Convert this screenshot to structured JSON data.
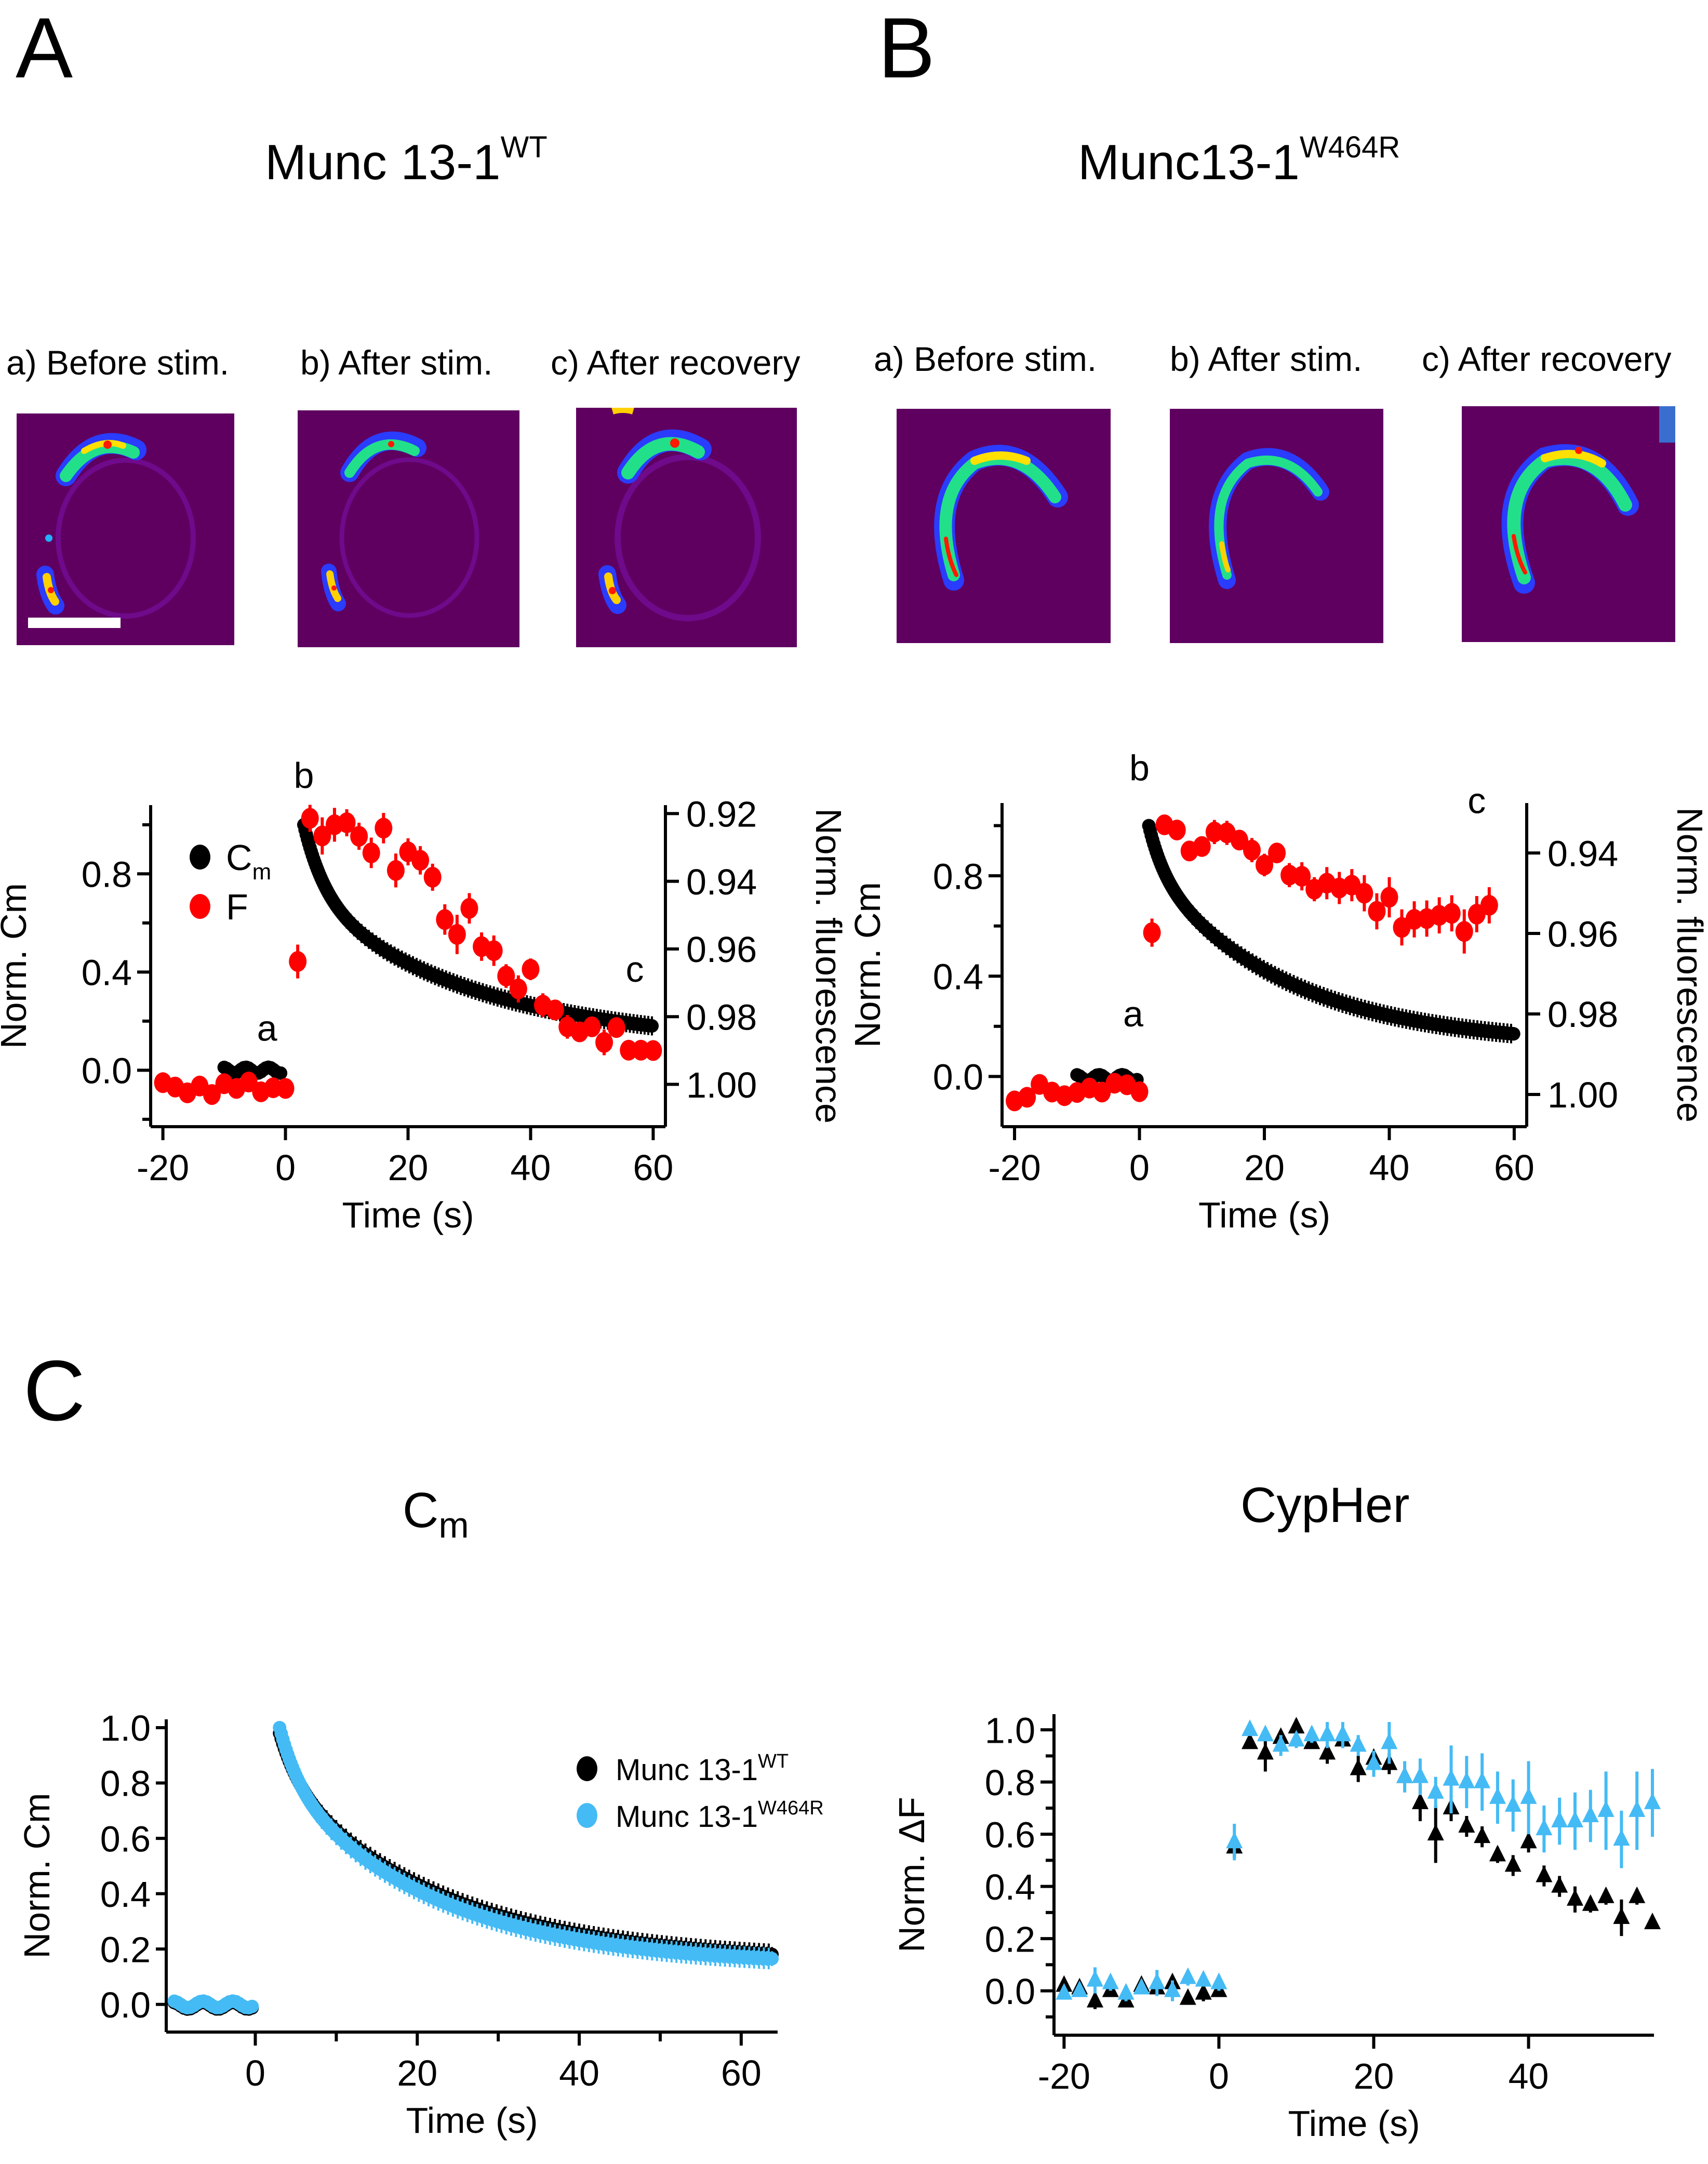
{
  "panels": {
    "A": {
      "letter": "A",
      "title_main": "Munc 13-1",
      "title_sup": "WT",
      "images": [
        {
          "label": "a) Before stim."
        },
        {
          "label": "b) After stim."
        },
        {
          "label": "c) After recovery"
        }
      ],
      "scale_bar": true
    },
    "B": {
      "letter": "B",
      "title_main": "Munc13-1",
      "title_sup": "W464R",
      "images": [
        {
          "label": "a) Before stim."
        },
        {
          "label": "b) After stim."
        },
        {
          "label": "c) After recovery"
        }
      ]
    },
    "C": {
      "letter": "C",
      "title_left_main": "C",
      "title_left_sub": "m",
      "title_right": "CypHer"
    }
  },
  "colors": {
    "cm": "#000000",
    "fluor": "#ff0000",
    "wt": "#000000",
    "mutant": "#44bbf5",
    "image_bg": "#5f0060"
  },
  "chart_data": [
    {
      "id": "A-plot",
      "type": "scatter",
      "xlabel": "Time (s)",
      "ylabel": "Norm. Cm",
      "y2label": "Norm. fluorescence",
      "xlim": [
        -22,
        62
      ],
      "ylim": [
        -0.23,
        1.08
      ],
      "y2lim_inverted": [
        1.0125,
        0.9175
      ],
      "xticks": [
        -20,
        0,
        20,
        40,
        60
      ],
      "yticks": [
        0.0,
        0.4,
        0.8
      ],
      "yticks_minor": [
        -0.2,
        0.2,
        0.6,
        1.0
      ],
      "y2ticks": [
        0.92,
        0.94,
        0.96,
        0.98,
        1.0
      ],
      "ytick_labels": [
        "0.0",
        "0.4",
        "0.8"
      ],
      "y2tick_labels": [
        "0.92",
        "0.94",
        "0.96",
        "0.98",
        "1.00"
      ],
      "annotations": [
        {
          "text": "a",
          "x": -3,
          "y": 0.12
        },
        {
          "text": "b",
          "x": 3,
          "y": 1.15
        },
        {
          "text": "c",
          "x": 57,
          "y": 0.36
        }
      ],
      "legend": {
        "placement": "top-left",
        "entries": [
          {
            "label": "C",
            "sub": "m",
            "series": "Cm"
          },
          {
            "label": "F",
            "sub": "",
            "series": "F"
          }
        ]
      },
      "series": [
        {
          "name": "Cm",
          "axis": "left",
          "kind": "dense-decay",
          "baseline": {
            "x": [
              -10,
              -0.5
            ],
            "y": 0.0
          },
          "decay": {
            "x_start": 3,
            "x_end": 60,
            "y_start": 1.0,
            "y_end": 0.18,
            "tau_fast": 3.5,
            "tau_slow": 28,
            "fast_frac": 0.32
          }
        },
        {
          "name": "F",
          "axis": "right",
          "x": [
            -20,
            -18,
            -16,
            -14,
            -12,
            -10,
            -8,
            -6,
            -4,
            -2,
            0,
            2,
            4,
            6,
            8,
            10,
            12,
            14,
            16,
            18,
            20,
            22,
            24,
            26,
            28,
            30,
            32,
            34,
            36,
            38,
            40,
            42,
            44,
            46,
            48,
            50,
            52,
            54,
            56,
            58,
            60
          ],
          "y": [
            0.9995,
            1.0008,
            1.0025,
            1.0005,
            1.003,
            0.9998,
            1.0012,
            0.9993,
            1.0022,
            1.001,
            1.0012,
            0.9637,
            0.9214,
            0.9266,
            0.9233,
            0.9227,
            0.9267,
            0.9316,
            0.9243,
            0.9368,
            0.9313,
            0.9338,
            0.9388,
            0.9513,
            0.9557,
            0.948,
            0.9593,
            0.9605,
            0.968,
            0.9718,
            0.966,
            0.9766,
            0.978,
            0.983,
            0.9845,
            0.983,
            0.9876,
            0.9832,
            0.9899,
            0.9899,
            0.99
          ],
          "err": [
            0.0011,
            0.0012,
            0.0022,
            0.0018,
            0.0017,
            0.0012,
            0.0017,
            0.0015,
            0.0021,
            0.0016,
            0.0019,
            0.005,
            0.004,
            0.0055,
            0.005,
            0.004,
            0.004,
            0.0045,
            0.0045,
            0.005,
            0.004,
            0.0042,
            0.004,
            0.0045,
            0.0058,
            0.0045,
            0.0042,
            0.0045,
            0.0035,
            0.004,
            0.0032,
            0.0035,
            0.003,
            0.0035,
            0.003,
            0.0028,
            0.0038,
            0.0028,
            0.002,
            0.0018,
            0.0018
          ]
        }
      ]
    },
    {
      "id": "B-plot",
      "type": "scatter",
      "xlabel": "Time (s)",
      "ylabel": "Norm. Cm",
      "y2label": "Norm. fluorescence",
      "xlim": [
        -22,
        62
      ],
      "ylim": [
        -0.2,
        1.09
      ],
      "y2lim_inverted": [
        1.008,
        0.9276
      ],
      "xticks": [
        -20,
        0,
        20,
        40,
        60
      ],
      "yticks": [
        0.0,
        0.4,
        0.8
      ],
      "yticks_minor": [
        0.2,
        0.6,
        1.0
      ],
      "y2ticks": [
        0.94,
        0.96,
        0.98,
        1.0
      ],
      "ytick_labels": [
        "0.0",
        "0.4",
        "0.8"
      ],
      "y2tick_labels": [
        "0.94",
        "0.96",
        "0.98",
        "1.00"
      ],
      "annotations": [
        {
          "text": "a",
          "x": -1,
          "y": 0.2
        },
        {
          "text": "b",
          "x": 0,
          "y": 1.18
        },
        {
          "text": "c",
          "x": 54,
          "y": 1.05
        }
      ],
      "series": [
        {
          "name": "Cm",
          "axis": "left",
          "kind": "dense-decay",
          "baseline": {
            "x": [
              -10,
              0
            ],
            "y": -0.005
          },
          "decay": {
            "x_start": 1.5,
            "x_end": 60,
            "y_start": 1.0,
            "y_end": 0.17,
            "tau_fast": 2.5,
            "tau_slow": 22,
            "fast_frac": 0.2
          }
        },
        {
          "name": "F",
          "axis": "right",
          "x": [
            -20,
            -18,
            -16,
            -14,
            -12,
            -10,
            -8,
            -6,
            -4,
            -2,
            0,
            2,
            4,
            6,
            8,
            10,
            12,
            14,
            16,
            18,
            20,
            22,
            24,
            26,
            28,
            30,
            32,
            34,
            36,
            38,
            40,
            42,
            44,
            46,
            48,
            50,
            52,
            54,
            56
          ],
          "y": [
            1.0016,
            1.0007,
            0.9975,
            0.9994,
            1.0003,
            0.9995,
            0.9984,
            0.9994,
            0.9972,
            0.9976,
            0.9993,
            0.9598,
            0.933,
            0.9343,
            0.9395,
            0.9384,
            0.9348,
            0.935,
            0.9368,
            0.9393,
            0.943,
            0.94,
            0.9455,
            0.9458,
            0.949,
            0.9475,
            0.9487,
            0.948,
            0.95,
            0.9545,
            0.951,
            0.9585,
            0.9565,
            0.9563,
            0.9555,
            0.955,
            0.9595,
            0.9552,
            0.953
          ],
          "err": [
            0.0012,
            0.0012,
            0.0022,
            0.0025,
            0.0014,
            0.0015,
            0.002,
            0.0015,
            0.0018,
            0.002,
            0.0025,
            0.0035,
            0.0025,
            0.0025,
            0.0025,
            0.0025,
            0.003,
            0.003,
            0.0025,
            0.003,
            0.0028,
            0.0025,
            0.003,
            0.0035,
            0.003,
            0.004,
            0.004,
            0.004,
            0.0045,
            0.0045,
            0.005,
            0.0045,
            0.0045,
            0.0045,
            0.0045,
            0.0045,
            0.0055,
            0.0045,
            0.0045
          ]
        }
      ]
    },
    {
      "id": "C-cm",
      "type": "scatter",
      "title": "Cm",
      "xlabel": "Time (s)",
      "ylabel": "Norm. Cm",
      "xlim": [
        -11,
        64.5
      ],
      "ylim": [
        -0.1,
        1.03
      ],
      "xticks": [
        0,
        20,
        40,
        60
      ],
      "xticks_minor": [
        10,
        30,
        50
      ],
      "yticks": [
        0.0,
        0.2,
        0.4,
        0.6,
        0.8,
        1.0
      ],
      "ytick_labels": [
        "0.0",
        "0.2",
        "0.4",
        "0.6",
        "0.8",
        "1.0"
      ],
      "legend": {
        "placement": "top-right",
        "entries": [
          {
            "label": "Munc 13-1",
            "sup": "WT",
            "series": "WT"
          },
          {
            "label": "Munc 13-1",
            "sup": "W464R",
            "series": "W464R"
          }
        ]
      },
      "series": [
        {
          "name": "WT",
          "kind": "dense-decay",
          "baseline": {
            "x": [
              -10,
              0
            ],
            "y": -0.005
          },
          "decay": {
            "x_start": 3,
            "x_end": 64,
            "y_start": 0.98,
            "y_end": 0.18,
            "tau_fast": 2.5,
            "tau_slow": 20,
            "fast_frac": 0.2
          }
        },
        {
          "name": "W464R",
          "kind": "dense-decay",
          "baseline": {
            "x": [
              -10,
              0
            ],
            "y": 0.0
          },
          "decay": {
            "x_start": 3,
            "x_end": 64,
            "y_start": 1.0,
            "y_end": 0.165,
            "tau_fast": 2.5,
            "tau_slow": 19,
            "fast_frac": 0.22
          }
        }
      ]
    },
    {
      "id": "C-cypher",
      "type": "scatter",
      "title": "CypHer",
      "xlabel": "Time (s)",
      "ylabel": "Norm. ΔF",
      "xlim": [
        -21.3,
        56.2
      ],
      "ylim": [
        -0.17,
        1.06
      ],
      "xticks": [
        -20,
        0,
        20,
        40
      ],
      "yticks": [
        0.0,
        0.2,
        0.4,
        0.6,
        0.8,
        1.0
      ],
      "yticks_minor": [
        -0.1,
        0.1,
        0.3,
        0.5,
        0.7,
        0.9
      ],
      "ytick_labels": [
        "0.0",
        "0.2",
        "0.4",
        "0.6",
        "0.8",
        "1.0"
      ],
      "series": [
        {
          "name": "WT",
          "marker": "triangle",
          "x": [
            -20,
            -18,
            -16,
            -14,
            -12,
            -10,
            -8,
            -6,
            -4,
            -2,
            0,
            2,
            4,
            6,
            8,
            10,
            12,
            14,
            16,
            18,
            20,
            22,
            24,
            26,
            28,
            30,
            32,
            34,
            36,
            38,
            40,
            42,
            44,
            46,
            48,
            50,
            52,
            54,
            56
          ],
          "y": [
            0.02,
            0.01,
            -0.04,
            0.0,
            -0.04,
            0.02,
            0.01,
            0.03,
            -0.03,
            -0.01,
            0.0,
            0.55,
            0.95,
            0.91,
            0.97,
            1.01,
            0.95,
            0.91,
            0.96,
            0.85,
            0.89,
            0.87,
            0.82,
            0.72,
            0.6,
            0.7,
            0.63,
            0.59,
            0.52,
            0.48,
            0.57,
            0.44,
            0.4,
            0.35,
            0.33,
            0.36,
            0.28,
            0.36,
            0.26
          ],
          "err": [
            0.02,
            0.02,
            0.03,
            0.02,
            0.02,
            0.02,
            0.02,
            0.02,
            0.02,
            0.03,
            0.0,
            0.04,
            0.0,
            0.07,
            0.0,
            0.03,
            0.02,
            0.04,
            0.02,
            0.05,
            0.03,
            0.04,
            0.0,
            0.07,
            0.11,
            0.05,
            0.04,
            0.04,
            0.03,
            0.04,
            0.04,
            0.04,
            0.04,
            0.05,
            0.03,
            0.03,
            0.07,
            0.03,
            0.02
          ]
        },
        {
          "name": "W464R",
          "marker": "triangle",
          "x": [
            -20,
            -18,
            -16,
            -14,
            -12,
            -10,
            -8,
            -6,
            -4,
            -2,
            0,
            2,
            4,
            6,
            8,
            10,
            12,
            14,
            16,
            18,
            20,
            22,
            24,
            26,
            28,
            30,
            32,
            34,
            36,
            38,
            40,
            42,
            44,
            46,
            48,
            50,
            52,
            54,
            56
          ],
          "y": [
            -0.01,
            0.0,
            0.04,
            0.03,
            -0.01,
            0.01,
            0.03,
            0.0,
            0.05,
            0.04,
            0.03,
            0.57,
            1.0,
            0.98,
            0.94,
            0.96,
            0.98,
            0.98,
            0.98,
            0.94,
            0.87,
            0.95,
            0.82,
            0.82,
            0.76,
            0.81,
            0.8,
            0.8,
            0.74,
            0.71,
            0.74,
            0.62,
            0.65,
            0.65,
            0.67,
            0.69,
            0.58,
            0.69,
            0.72
          ],
          "err": [
            0.02,
            0.02,
            0.05,
            0.03,
            0.03,
            0.02,
            0.05,
            0.04,
            0.03,
            0.02,
            0.03,
            0.07,
            0.0,
            0.02,
            0.04,
            0.03,
            0.03,
            0.05,
            0.05,
            0.04,
            0.05,
            0.08,
            0.06,
            0.07,
            0.06,
            0.13,
            0.1,
            0.11,
            0.1,
            0.1,
            0.14,
            0.09,
            0.09,
            0.11,
            0.1,
            0.15,
            0.11,
            0.15,
            0.13
          ]
        }
      ]
    }
  ]
}
